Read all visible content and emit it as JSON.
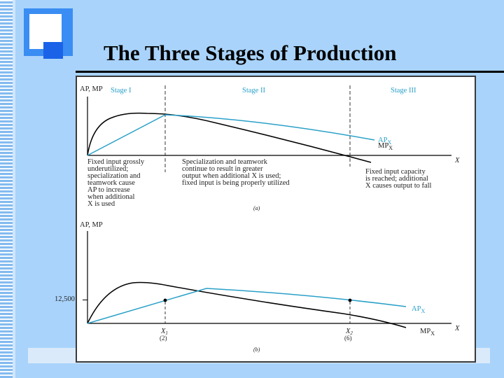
{
  "slide": {
    "title": "The Three Stages of Production"
  },
  "colors": {
    "background": "#a9d3fb",
    "ap_curve": "#2aa0c8",
    "mp_curve": "#000000",
    "stage_labels": "#2aa0c8"
  },
  "panel_a": {
    "y_axis_label": "AP, MP",
    "x_axis_label": "X",
    "stages": [
      "Stage I",
      "Stage II",
      "Stage III"
    ],
    "ap_label": "AP",
    "mp_label": "MP",
    "subscript": "X",
    "notes": {
      "stage1": [
        "Fixed input grossly",
        "underutilized;",
        "specialization and",
        "teamwork cause",
        "AP to increase",
        "when additional",
        "X is used"
      ],
      "stage2": [
        "Specialization and teamwork",
        "continue to result in greater",
        "output when additional X is used;",
        "fixed input is being properly utilized"
      ],
      "stage3": [
        "Fixed input capacity",
        "is reached; additional",
        "X causes output to fall"
      ]
    },
    "caption": "(a)"
  },
  "panel_b": {
    "y_axis_label": "AP, MP",
    "x_axis_label": "X",
    "y_tick": "12,500",
    "x_ticks": [
      {
        "label": "X",
        "sub": "1",
        "value": "(2)"
      },
      {
        "label": "X",
        "sub": "2",
        "value": "(6)"
      }
    ],
    "ap_label": "AP",
    "mp_label": "MP",
    "subscript": "X",
    "caption": "(b)"
  }
}
